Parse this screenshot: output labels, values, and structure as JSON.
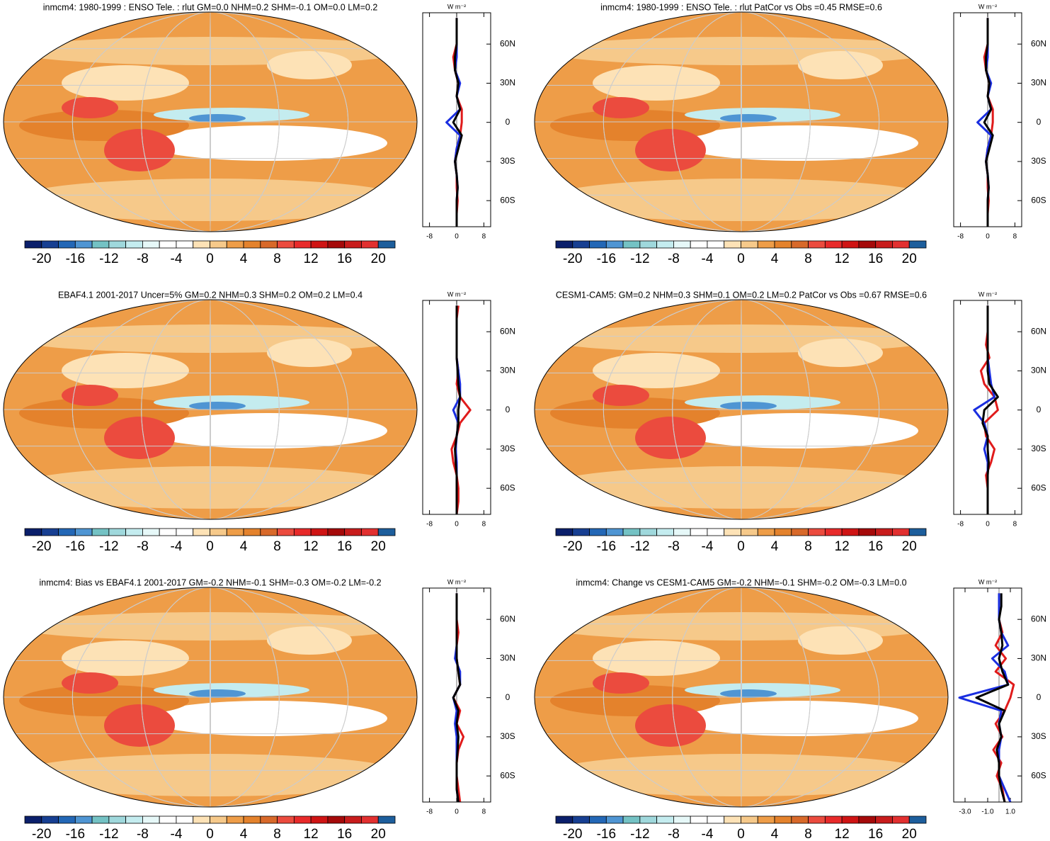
{
  "chart_data": [
    {
      "type": "map",
      "title": "inmcm4: 1980-1999 : ENSO Tele. : rlut GM=0.0 NHM=0.2 SHM=-0.1 OM=0.0 LM=0.2",
      "clim": [
        -22,
        22
      ],
      "levels": [
        -20,
        -18,
        -16,
        -14,
        -12,
        -10,
        -8,
        -6,
        -4,
        -2,
        0,
        2,
        4,
        6,
        8,
        10,
        12,
        14,
        16,
        18,
        20
      ],
      "cbar_ticks": [
        -20,
        -16,
        -12,
        -8,
        -4,
        0,
        4,
        8,
        12,
        16,
        20
      ],
      "colors": [
        "#0b1f6b",
        "#173f92",
        "#2367b6",
        "#4f95d3",
        "#74c2c4",
        "#9fd8dc",
        "#c4ecef",
        "#e6f8f8",
        "#ffffff",
        "#ffffff",
        "#fde2b6",
        "#f6c98a",
        "#ee9d48",
        "#e4822c",
        "#d8692a",
        "#eb4b3e",
        "#e82a2a",
        "#cf1414",
        "#a50a0a",
        "#c81c1c",
        "#e23030",
        "#1d5e9c"
      ]
    },
    {
      "type": "line",
      "unit": "W m⁻²",
      "xlim": [
        -10,
        10
      ],
      "xticks": [
        -8,
        0,
        8
      ],
      "ylim": [
        -80,
        84
      ],
      "yticks": [
        {
          "value": 60,
          "label": "60N"
        },
        {
          "value": 30,
          "label": "30N"
        },
        0,
        {
          "value": -30,
          "label": "30S"
        },
        {
          "value": -60,
          "label": "60S"
        }
      ],
      "lat": [
        -80,
        -70,
        -60,
        -50,
        -40,
        -30,
        -20,
        -10,
        0,
        10,
        20,
        30,
        40,
        50,
        60,
        70,
        80
      ],
      "series": [
        {
          "color": "#e01b1b",
          "values": [
            0,
            0,
            0.3,
            0,
            0,
            -0.5,
            0,
            1,
            1.5,
            1.5,
            0,
            0.5,
            -0.5,
            -1,
            0,
            0,
            0
          ]
        },
        {
          "color": "#1a2ee0",
          "values": [
            0,
            0,
            0,
            0.3,
            0,
            -0.5,
            0,
            1,
            -3,
            1,
            0,
            1,
            -0.5,
            0,
            0,
            0,
            0
          ]
        },
        {
          "color": "#000000",
          "values": [
            0,
            0,
            0,
            0.3,
            0,
            -0.5,
            0.5,
            1.5,
            -1,
            1,
            0,
            0.5,
            -0.5,
            -0.5,
            0,
            0,
            0
          ]
        }
      ]
    },
    {
      "type": "map",
      "title": "inmcm4: 1980-1999 : ENSO Tele. : rlut PatCor vs Obs =0.45 RMSE=0.6",
      "clim": [
        -22,
        22
      ],
      "levels": [
        -20,
        -18,
        -16,
        -14,
        -12,
        -10,
        -8,
        -6,
        -4,
        -2,
        0,
        2,
        4,
        6,
        8,
        10,
        12,
        14,
        16,
        18,
        20
      ],
      "cbar_ticks": [
        -20,
        -16,
        -12,
        -8,
        -4,
        0,
        4,
        8,
        12,
        16,
        20
      ],
      "colors": [
        "#0b1f6b",
        "#173f92",
        "#2367b6",
        "#4f95d3",
        "#74c2c4",
        "#9fd8dc",
        "#c4ecef",
        "#e6f8f8",
        "#ffffff",
        "#ffffff",
        "#fde2b6",
        "#f6c98a",
        "#ee9d48",
        "#e4822c",
        "#d8692a",
        "#eb4b3e",
        "#e82a2a",
        "#cf1414",
        "#a50a0a",
        "#c81c1c",
        "#e23030",
        "#1d5e9c"
      ]
    },
    {
      "type": "line",
      "unit": "W m⁻²",
      "xlim": [
        -10,
        10
      ],
      "xticks": [
        -8,
        0,
        8
      ],
      "ylim": [
        -80,
        84
      ],
      "yticks": [
        {
          "value": 60,
          "label": "60N"
        },
        {
          "value": 30,
          "label": "30N"
        },
        0,
        {
          "value": -30,
          "label": "30S"
        },
        {
          "value": -60,
          "label": "60S"
        }
      ],
      "lat": [
        -80,
        -70,
        -60,
        -50,
        -40,
        -30,
        -20,
        -10,
        0,
        10,
        20,
        30,
        40,
        50,
        60,
        70,
        80
      ],
      "series": [
        {
          "color": "#e01b1b",
          "values": [
            0,
            0,
            0.3,
            0,
            0,
            -0.5,
            0,
            1,
            1.5,
            1.5,
            0,
            0.5,
            -0.5,
            -1,
            0,
            0,
            0
          ]
        },
        {
          "color": "#1a2ee0",
          "values": [
            0,
            0,
            0,
            0.3,
            0,
            -0.5,
            0,
            1,
            -3,
            1,
            0,
            1,
            -0.5,
            0,
            0,
            0,
            0
          ]
        },
        {
          "color": "#000000",
          "values": [
            0,
            0,
            0,
            0.3,
            0,
            -0.5,
            0.5,
            1.5,
            -1,
            1,
            0,
            0.5,
            -0.5,
            -0.5,
            0,
            0,
            0
          ]
        }
      ]
    },
    {
      "type": "map",
      "title": "EBAF4.1 2001-2017 Uncer=5% GM=0.2 NHM=0.3 SHM=0.2 OM=0.2 LM=0.4",
      "clim": [
        -22,
        22
      ],
      "levels": [
        -20,
        -18,
        -16,
        -14,
        -12,
        -10,
        -8,
        -6,
        -4,
        -2,
        0,
        2,
        4,
        6,
        8,
        10,
        12,
        14,
        16,
        18,
        20
      ],
      "cbar_ticks": [
        -20,
        -16,
        -12,
        -8,
        -4,
        0,
        4,
        8,
        12,
        16,
        20
      ],
      "colors": [
        "#0b1f6b",
        "#173f92",
        "#2367b6",
        "#4f95d3",
        "#74c2c4",
        "#9fd8dc",
        "#c4ecef",
        "#e6f8f8",
        "#ffffff",
        "#ffffff",
        "#fde2b6",
        "#f6c98a",
        "#ee9d48",
        "#e4822c",
        "#d8692a",
        "#eb4b3e",
        "#e82a2a",
        "#cf1414",
        "#a50a0a",
        "#c81c1c",
        "#e23030",
        "#1d5e9c"
      ]
    },
    {
      "type": "line",
      "unit": "W m⁻²",
      "xlim": [
        -10,
        10
      ],
      "xticks": [
        -8,
        0,
        8
      ],
      "ylim": [
        -80,
        84
      ],
      "yticks": [
        {
          "value": 60,
          "label": "60N"
        },
        {
          "value": 30,
          "label": "30N"
        },
        0,
        {
          "value": -30,
          "label": "30S"
        },
        {
          "value": -60,
          "label": "60S"
        }
      ],
      "lat": [
        -80,
        -70,
        -60,
        -50,
        -40,
        -30,
        -20,
        -10,
        0,
        10,
        20,
        30,
        40,
        50,
        60,
        70,
        80
      ],
      "series": [
        {
          "color": "#e01b1b",
          "values": [
            0,
            0.5,
            0.5,
            0,
            -1,
            -1.5,
            0,
            1,
            4,
            1,
            0,
            0.5,
            0,
            0,
            0,
            0,
            0.5
          ]
        },
        {
          "color": "#1a2ee0",
          "values": [
            0,
            0,
            0,
            0,
            0,
            -0.3,
            0,
            0.5,
            -1,
            1,
            1,
            0.5,
            0,
            0,
            0,
            0,
            0
          ]
        },
        {
          "color": "#000000",
          "values": [
            0,
            0,
            0,
            0,
            -0.3,
            -0.5,
            0,
            0.5,
            0.5,
            1,
            0.5,
            0.3,
            0,
            0,
            0,
            0,
            0
          ]
        }
      ]
    },
    {
      "type": "map",
      "title": "CESM1-CAM5: GM=0.2 NHM=0.3 SHM=0.1 OM=0.2 LM=0.2 PatCor vs Obs =0.67 RMSE=0.6",
      "clim": [
        -22,
        22
      ],
      "levels": [
        -20,
        -18,
        -16,
        -14,
        -12,
        -10,
        -8,
        -6,
        -4,
        -2,
        0,
        2,
        4,
        6,
        8,
        10,
        12,
        14,
        16,
        18,
        20
      ],
      "cbar_ticks": [
        -20,
        -16,
        -12,
        -8,
        -4,
        0,
        4,
        8,
        12,
        16,
        20
      ],
      "colors": [
        "#0b1f6b",
        "#173f92",
        "#2367b6",
        "#4f95d3",
        "#74c2c4",
        "#9fd8dc",
        "#c4ecef",
        "#e6f8f8",
        "#ffffff",
        "#ffffff",
        "#fde2b6",
        "#f6c98a",
        "#ee9d48",
        "#e4822c",
        "#d8692a",
        "#eb4b3e",
        "#e82a2a",
        "#cf1414",
        "#a50a0a",
        "#c81c1c",
        "#e23030",
        "#1d5e9c"
      ]
    },
    {
      "type": "line",
      "unit": "W m⁻²",
      "xlim": [
        -10,
        10
      ],
      "xticks": [
        -8,
        0,
        8
      ],
      "ylim": [
        -80,
        84
      ],
      "yticks": [
        {
          "value": 60,
          "label": "60N"
        },
        {
          "value": 30,
          "label": "30N"
        },
        0,
        {
          "value": -30,
          "label": "30S"
        },
        {
          "value": -60,
          "label": "60S"
        }
      ],
      "lat": [
        -80,
        -70,
        -60,
        -50,
        -40,
        -30,
        -20,
        -10,
        0,
        10,
        20,
        30,
        40,
        50,
        60,
        70,
        80
      ],
      "series": [
        {
          "color": "#e01b1b",
          "values": [
            0,
            0,
            0,
            -0.5,
            1,
            2,
            -0.5,
            -1,
            3,
            2,
            -1,
            -2,
            0.5,
            -0.5,
            0,
            0,
            0
          ]
        },
        {
          "color": "#1a2ee0",
          "values": [
            0,
            0,
            0,
            0,
            0,
            -1,
            0,
            -1,
            -4,
            2,
            1,
            0.5,
            0,
            0,
            0,
            0,
            0
          ]
        },
        {
          "color": "#000000",
          "values": [
            0,
            0,
            0,
            0,
            0.3,
            0,
            0,
            -1.5,
            -1,
            3,
            0.5,
            0,
            0,
            0,
            0,
            0,
            0
          ]
        }
      ]
    },
    {
      "type": "map",
      "title": "inmcm4: Bias vs EBAF4.1 2001-2017 GM=-0.2 NHM=-0.1 SHM=-0.3 OM=-0.2 LM=-0.2",
      "clim": [
        -22,
        22
      ],
      "levels": [
        -20,
        -18,
        -16,
        -14,
        -12,
        -10,
        -8,
        -6,
        -4,
        -2,
        0,
        2,
        4,
        6,
        8,
        10,
        12,
        14,
        16,
        18,
        20
      ],
      "cbar_ticks": [
        -20,
        -16,
        -12,
        -8,
        -4,
        0,
        4,
        8,
        12,
        16,
        20
      ],
      "colors": [
        "#0b1f6b",
        "#173f92",
        "#2367b6",
        "#4f95d3",
        "#74c2c4",
        "#9fd8dc",
        "#c4ecef",
        "#e6f8f8",
        "#ffffff",
        "#ffffff",
        "#fde2b6",
        "#f6c98a",
        "#ee9d48",
        "#e4822c",
        "#d8692a",
        "#eb4b3e",
        "#e82a2a",
        "#cf1414",
        "#a50a0a",
        "#c81c1c",
        "#e23030",
        "#1d5e9c"
      ]
    },
    {
      "type": "line",
      "unit": "W m⁻²",
      "xlim": [
        -10,
        10
      ],
      "xticks": [
        -8,
        0,
        8
      ],
      "ylim": [
        -80,
        84
      ],
      "yticks": [
        {
          "value": 60,
          "label": "60N"
        },
        {
          "value": 30,
          "label": "30N"
        },
        0,
        {
          "value": -30,
          "label": "30S"
        },
        {
          "value": -60,
          "label": "60S"
        }
      ],
      "lat": [
        -80,
        -70,
        -60,
        -50,
        -40,
        -30,
        -20,
        -10,
        0,
        10,
        20,
        30,
        40,
        50,
        60,
        70,
        80
      ],
      "series": [
        {
          "color": "#e01b1b",
          "values": [
            1,
            0.5,
            0,
            0,
            0.5,
            2,
            0,
            1,
            -1,
            1,
            0.5,
            0,
            0,
            0.5,
            0,
            0,
            0
          ]
        },
        {
          "color": "#1a2ee0",
          "values": [
            0.5,
            0,
            0,
            0,
            0,
            0,
            -0.5,
            0,
            -1,
            1,
            1,
            -0.5,
            0,
            0,
            0,
            0,
            0
          ]
        },
        {
          "color": "#000000",
          "values": [
            0.5,
            0,
            0,
            0,
            0.3,
            0.5,
            0,
            0.5,
            -1,
            1,
            0.5,
            0,
            0,
            0,
            0,
            0,
            0
          ]
        }
      ]
    },
    {
      "type": "map",
      "title": "inmcm4: Change vs CESM1-CAM5 GM=-0.2 NHM=-0.1 SHM=-0.2 OM=-0.3 LM=0.0",
      "clim": [
        -22,
        22
      ],
      "levels": [
        -20,
        -18,
        -16,
        -14,
        -12,
        -10,
        -8,
        -6,
        -4,
        -2,
        0,
        2,
        4,
        6,
        8,
        10,
        12,
        14,
        16,
        18,
        20
      ],
      "cbar_ticks": [
        -20,
        -16,
        -12,
        -8,
        -4,
        0,
        4,
        8,
        12,
        16,
        20
      ],
      "colors": [
        "#0b1f6b",
        "#173f92",
        "#2367b6",
        "#4f95d3",
        "#74c2c4",
        "#9fd8dc",
        "#c4ecef",
        "#e6f8f8",
        "#ffffff",
        "#ffffff",
        "#fde2b6",
        "#f6c98a",
        "#ee9d48",
        "#e4822c",
        "#d8692a",
        "#eb4b3e",
        "#e82a2a",
        "#cf1414",
        "#a50a0a",
        "#c81c1c",
        "#e23030",
        "#1d5e9c"
      ]
    },
    {
      "type": "line",
      "unit": "W m⁻²",
      "xlim": [
        -4,
        2
      ],
      "xticks": [
        {
          "value": -3,
          "label": "-3.0"
        },
        {
          "value": -1,
          "label": "-1.0"
        },
        {
          "value": 1,
          "label": "1.0"
        }
      ],
      "ylim": [
        -80,
        84
      ],
      "yticks": [
        {
          "value": 60,
          "label": "60N"
        },
        {
          "value": 30,
          "label": "30N"
        },
        0,
        {
          "value": -30,
          "label": "30S"
        },
        {
          "value": -60,
          "label": "60S"
        }
      ],
      "lat": [
        -80,
        -70,
        -60,
        -50,
        -40,
        -30,
        -20,
        -10,
        0,
        10,
        20,
        30,
        40,
        50,
        60,
        70,
        80
      ],
      "series": [
        {
          "color": "#e01b1b",
          "values": [
            0.5,
            0.3,
            -0.2,
            0.2,
            -0.5,
            0.3,
            -0.3,
            0.5,
            1,
            1.3,
            -0.3,
            0.6,
            -0.3,
            0.3,
            0,
            0,
            0
          ]
        },
        {
          "color": "#1a2ee0",
          "values": [
            1,
            0.5,
            0,
            0,
            0,
            0.2,
            0,
            0.2,
            -3.5,
            0.8,
            0.5,
            -0.6,
            0.8,
            0.2,
            0,
            0,
            0
          ]
        },
        {
          "color": "#000000",
          "values": [
            0.5,
            0.2,
            0,
            0,
            -0.2,
            0.2,
            0,
            0.5,
            -2,
            0.8,
            0.3,
            0,
            0.3,
            0.2,
            0,
            0.2,
            0.2
          ]
        }
      ]
    }
  ]
}
